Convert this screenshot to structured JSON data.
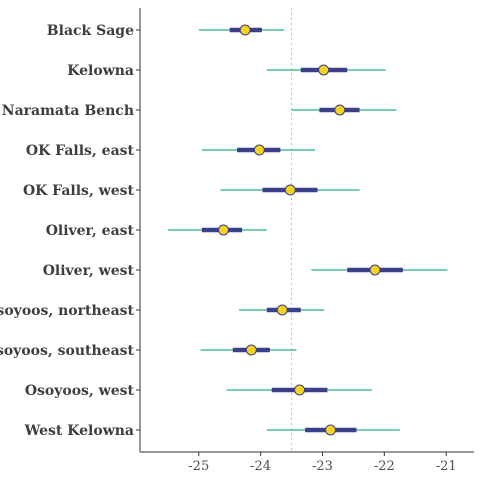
{
  "chart_data": {
    "type": "interval",
    "title": "",
    "xlabel": "",
    "ylabel": "",
    "xlim": [
      -25.95,
      -20.55
    ],
    "x_ticks": [
      -25,
      -24,
      -23,
      -22,
      -21
    ],
    "x_tick_labels": [
      "-25",
      "-24",
      "-23",
      "-22",
      "-21"
    ],
    "reference_line": -23.5,
    "grid": false,
    "colors": {
      "outer_interval": "#4dbd9a",
      "inner_interval": "#3d3f8a",
      "point_fill": "#f5d31e",
      "point_stroke": "#3d3f8a",
      "reference_line": "#bdbdbd",
      "axis": "#333333"
    },
    "categories": [
      "Black Sage",
      "Kelowna",
      "Naramata Bench",
      "OK Falls, east",
      "OK Falls, west",
      "Oliver, east",
      "Oliver, west",
      "Osoyoos, northeast",
      "Osoyoos, southeast",
      "Osoyoos, west",
      "West Kelowna"
    ],
    "estimates": [
      {
        "median": -24.25,
        "inner": [
          -24.5,
          -23.98
        ],
        "outer": [
          -25.0,
          -23.62
        ]
      },
      {
        "median": -22.98,
        "inner": [
          -23.35,
          -22.6
        ],
        "outer": [
          -23.9,
          -21.98
        ]
      },
      {
        "median": -22.72,
        "inner": [
          -23.05,
          -22.4
        ],
        "outer": [
          -23.5,
          -21.8
        ]
      },
      {
        "median": -24.02,
        "inner": [
          -24.38,
          -23.68
        ],
        "outer": [
          -24.95,
          -23.12
        ]
      },
      {
        "median": -23.52,
        "inner": [
          -23.97,
          -23.08
        ],
        "outer": [
          -24.65,
          -22.4
        ]
      },
      {
        "median": -24.6,
        "inner": [
          -24.95,
          -24.3
        ],
        "outer": [
          -25.5,
          -23.9
        ]
      },
      {
        "median": -22.15,
        "inner": [
          -22.6,
          -21.7
        ],
        "outer": [
          -23.18,
          -20.98
        ]
      },
      {
        "median": -23.65,
        "inner": [
          -23.9,
          -23.35
        ],
        "outer": [
          -24.35,
          -22.97
        ]
      },
      {
        "median": -24.15,
        "inner": [
          -24.45,
          -23.85
        ],
        "outer": [
          -24.97,
          -23.42
        ]
      },
      {
        "median": -23.37,
        "inner": [
          -23.82,
          -22.92
        ],
        "outer": [
          -24.55,
          -22.2
        ]
      },
      {
        "median": -22.87,
        "inner": [
          -23.28,
          -22.45
        ],
        "outer": [
          -23.9,
          -21.75
        ]
      }
    ]
  }
}
